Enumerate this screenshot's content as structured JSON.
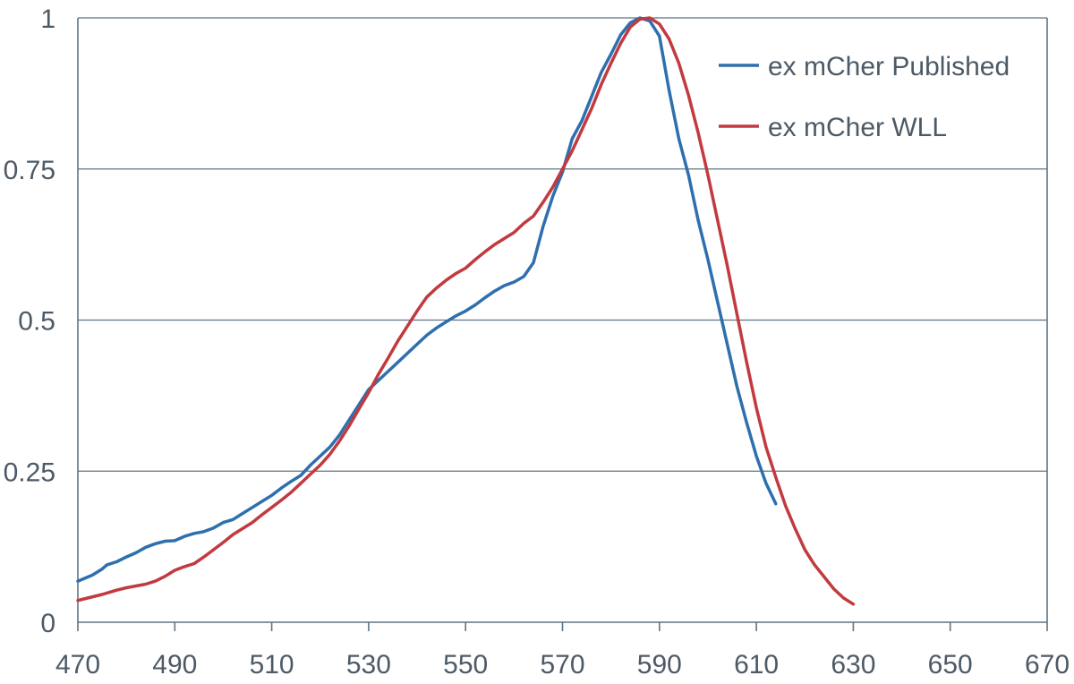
{
  "chart_data": {
    "type": "line",
    "title": "",
    "xlabel": "",
    "ylabel": "",
    "xlim": [
      470,
      670
    ],
    "ylim": [
      0,
      1
    ],
    "x_ticks": [
      470,
      490,
      510,
      530,
      550,
      570,
      590,
      610,
      630,
      650,
      670
    ],
    "y_ticks": [
      0,
      0.25,
      0.5,
      0.75,
      1
    ],
    "y_tick_labels": [
      "0",
      "0.25",
      "0.5",
      "0.75",
      "1"
    ],
    "grid": "horizontal",
    "legend_position": "top-right",
    "series": [
      {
        "name": "ex mCher Published",
        "color": "#2e6fae",
        "points": [
          [
            470,
            0.068
          ],
          [
            473,
            0.078
          ],
          [
            475,
            0.088
          ],
          [
            476,
            0.095
          ],
          [
            478,
            0.1
          ],
          [
            480,
            0.108
          ],
          [
            482,
            0.115
          ],
          [
            484,
            0.124
          ],
          [
            486,
            0.13
          ],
          [
            488,
            0.134
          ],
          [
            490,
            0.135
          ],
          [
            492,
            0.142
          ],
          [
            494,
            0.147
          ],
          [
            496,
            0.15
          ],
          [
            498,
            0.156
          ],
          [
            500,
            0.165
          ],
          [
            502,
            0.17
          ],
          [
            504,
            0.18
          ],
          [
            506,
            0.19
          ],
          [
            508,
            0.2
          ],
          [
            510,
            0.21
          ],
          [
            512,
            0.222
          ],
          [
            514,
            0.233
          ],
          [
            516,
            0.243
          ],
          [
            518,
            0.26
          ],
          [
            520,
            0.275
          ],
          [
            522,
            0.29
          ],
          [
            524,
            0.31
          ],
          [
            526,
            0.335
          ],
          [
            528,
            0.36
          ],
          [
            530,
            0.385
          ],
          [
            532,
            0.4
          ],
          [
            534,
            0.415
          ],
          [
            536,
            0.43
          ],
          [
            538,
            0.445
          ],
          [
            540,
            0.46
          ],
          [
            542,
            0.475
          ],
          [
            544,
            0.487
          ],
          [
            546,
            0.497
          ],
          [
            548,
            0.507
          ],
          [
            550,
            0.515
          ],
          [
            552,
            0.525
          ],
          [
            554,
            0.537
          ],
          [
            556,
            0.548
          ],
          [
            558,
            0.557
          ],
          [
            560,
            0.563
          ],
          [
            562,
            0.572
          ],
          [
            564,
            0.595
          ],
          [
            566,
            0.655
          ],
          [
            568,
            0.705
          ],
          [
            570,
            0.745
          ],
          [
            572,
            0.8
          ],
          [
            574,
            0.83
          ],
          [
            576,
            0.87
          ],
          [
            578,
            0.91
          ],
          [
            580,
            0.94
          ],
          [
            582,
            0.972
          ],
          [
            584,
            0.992
          ],
          [
            586,
            1.0
          ],
          [
            588,
            0.995
          ],
          [
            590,
            0.97
          ],
          [
            592,
            0.88
          ],
          [
            594,
            0.8
          ],
          [
            596,
            0.74
          ],
          [
            598,
            0.665
          ],
          [
            600,
            0.6
          ],
          [
            602,
            0.53
          ],
          [
            604,
            0.46
          ],
          [
            606,
            0.39
          ],
          [
            608,
            0.33
          ],
          [
            610,
            0.275
          ],
          [
            612,
            0.23
          ],
          [
            614,
            0.196
          ]
        ]
      },
      {
        "name": "ex mCher WLL",
        "color": "#c23a3f",
        "points": [
          [
            470,
            0.036
          ],
          [
            472,
            0.04
          ],
          [
            475,
            0.046
          ],
          [
            478,
            0.053
          ],
          [
            480,
            0.057
          ],
          [
            484,
            0.063
          ],
          [
            486,
            0.068
          ],
          [
            488,
            0.076
          ],
          [
            490,
            0.086
          ],
          [
            492,
            0.092
          ],
          [
            494,
            0.097
          ],
          [
            496,
            0.108
          ],
          [
            498,
            0.12
          ],
          [
            500,
            0.132
          ],
          [
            502,
            0.145
          ],
          [
            504,
            0.155
          ],
          [
            506,
            0.165
          ],
          [
            508,
            0.178
          ],
          [
            510,
            0.19
          ],
          [
            512,
            0.202
          ],
          [
            514,
            0.215
          ],
          [
            516,
            0.23
          ],
          [
            518,
            0.245
          ],
          [
            520,
            0.26
          ],
          [
            522,
            0.278
          ],
          [
            524,
            0.3
          ],
          [
            526,
            0.325
          ],
          [
            528,
            0.353
          ],
          [
            530,
            0.38
          ],
          [
            532,
            0.41
          ],
          [
            534,
            0.437
          ],
          [
            536,
            0.465
          ],
          [
            538,
            0.49
          ],
          [
            540,
            0.515
          ],
          [
            542,
            0.538
          ],
          [
            544,
            0.553
          ],
          [
            546,
            0.566
          ],
          [
            548,
            0.577
          ],
          [
            550,
            0.586
          ],
          [
            552,
            0.6
          ],
          [
            554,
            0.613
          ],
          [
            556,
            0.625
          ],
          [
            558,
            0.635
          ],
          [
            560,
            0.645
          ],
          [
            562,
            0.66
          ],
          [
            564,
            0.672
          ],
          [
            566,
            0.695
          ],
          [
            568,
            0.72
          ],
          [
            570,
            0.75
          ],
          [
            572,
            0.78
          ],
          [
            574,
            0.815
          ],
          [
            576,
            0.85
          ],
          [
            578,
            0.89
          ],
          [
            580,
            0.925
          ],
          [
            582,
            0.958
          ],
          [
            584,
            0.985
          ],
          [
            586,
            0.998
          ],
          [
            588,
            1.0
          ],
          [
            590,
            0.99
          ],
          [
            592,
            0.965
          ],
          [
            594,
            0.925
          ],
          [
            596,
            0.872
          ],
          [
            598,
            0.81
          ],
          [
            600,
            0.74
          ],
          [
            602,
            0.665
          ],
          [
            604,
            0.59
          ],
          [
            606,
            0.51
          ],
          [
            608,
            0.43
          ],
          [
            610,
            0.355
          ],
          [
            612,
            0.29
          ],
          [
            614,
            0.24
          ],
          [
            616,
            0.193
          ],
          [
            618,
            0.155
          ],
          [
            620,
            0.12
          ],
          [
            622,
            0.095
          ],
          [
            624,
            0.075
          ],
          [
            626,
            0.055
          ],
          [
            628,
            0.04
          ],
          [
            630,
            0.03
          ]
        ]
      }
    ]
  }
}
